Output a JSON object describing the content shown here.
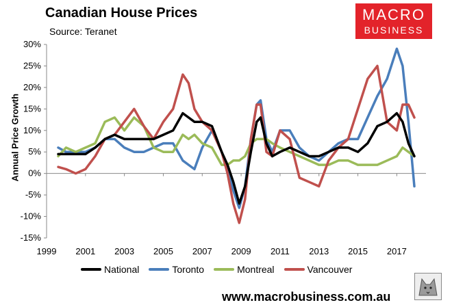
{
  "chart_data": {
    "type": "line",
    "title": "Canadian House Prices",
    "subtitle": "Source: Teranet",
    "xlabel": "",
    "ylabel": "Annual Price Growth",
    "ylim": [
      -15,
      30
    ],
    "xlim": [
      1999,
      2018.5
    ],
    "grid": false,
    "legend_position": "bottom",
    "y_ticks": [
      "-15%",
      "-10%",
      "-5%",
      "0%",
      "5%",
      "10%",
      "15%",
      "20%",
      "25%",
      "30%"
    ],
    "x_ticks": [
      "1999",
      "2001",
      "2003",
      "2005",
      "2007",
      "2009",
      "2011",
      "2013",
      "2015",
      "2017"
    ],
    "series": [
      {
        "name": "National",
        "color": "#000000",
        "x": [
          1999.6,
          2000.0,
          2000.5,
          2001.0,
          2001.5,
          2002.0,
          2002.5,
          2003.0,
          2003.5,
          2004.0,
          2004.5,
          2005.0,
          2005.5,
          2006.0,
          2006.3,
          2006.6,
          2007.0,
          2007.5,
          2008.0,
          2008.3,
          2008.6,
          2008.9,
          2009.2,
          2009.5,
          2009.8,
          2010.0,
          2010.3,
          2010.6,
          2011.0,
          2011.5,
          2012.0,
          2012.5,
          2013.0,
          2013.5,
          2014.0,
          2014.5,
          2015.0,
          2015.5,
          2016.0,
          2016.5,
          2017.0,
          2017.3,
          2017.6,
          2017.9
        ],
        "values": [
          4.5,
          4.5,
          4.5,
          4.5,
          6,
          8,
          9,
          8,
          8,
          8,
          8,
          9,
          10,
          14,
          13,
          12,
          12,
          11,
          5,
          2,
          -2,
          -7,
          -3,
          5,
          12,
          13,
          7,
          4,
          5,
          6,
          5,
          4,
          4,
          5,
          6,
          6,
          5,
          7,
          11,
          12,
          14,
          12,
          7,
          4
        ]
      },
      {
        "name": "Toronto",
        "color": "#4a7ebb",
        "x": [
          1999.6,
          2000.0,
          2000.5,
          2001.0,
          2001.5,
          2002.0,
          2002.5,
          2003.0,
          2003.5,
          2004.0,
          2004.5,
          2005.0,
          2005.5,
          2006.0,
          2006.3,
          2006.6,
          2007.0,
          2007.5,
          2008.0,
          2008.3,
          2008.6,
          2008.9,
          2009.2,
          2009.5,
          2009.8,
          2010.0,
          2010.3,
          2010.6,
          2011.0,
          2011.5,
          2012.0,
          2012.5,
          2013.0,
          2013.5,
          2014.0,
          2014.5,
          2015.0,
          2015.5,
          2016.0,
          2016.5,
          2017.0,
          2017.3,
          2017.6,
          2017.9
        ],
        "values": [
          6,
          5,
          5,
          5,
          6,
          8,
          8,
          6,
          5,
          5,
          6,
          7,
          7,
          3,
          2,
          1,
          6,
          10,
          5,
          1,
          -4,
          -8,
          -3,
          8,
          16,
          17,
          8,
          5,
          10,
          10,
          6,
          4,
          3,
          5,
          7,
          8,
          8,
          13,
          18,
          22,
          29,
          25,
          12,
          -3
        ]
      },
      {
        "name": "Montreal",
        "color": "#9bbb59",
        "x": [
          1999.6,
          2000.0,
          2000.5,
          2001.0,
          2001.5,
          2002.0,
          2002.5,
          2003.0,
          2003.5,
          2004.0,
          2004.5,
          2005.0,
          2005.5,
          2006.0,
          2006.3,
          2006.6,
          2007.0,
          2007.5,
          2008.0,
          2008.3,
          2008.6,
          2008.9,
          2009.2,
          2009.5,
          2009.8,
          2010.0,
          2010.3,
          2010.6,
          2011.0,
          2011.5,
          2012.0,
          2012.5,
          2013.0,
          2013.5,
          2014.0,
          2014.5,
          2015.0,
          2015.5,
          2016.0,
          2016.5,
          2017.0,
          2017.3,
          2017.6,
          2017.9
        ],
        "values": [
          4,
          6,
          5,
          6,
          7,
          12,
          13,
          10,
          13,
          11,
          6,
          5,
          5,
          9,
          8,
          9,
          7,
          6,
          2,
          2,
          3,
          3,
          4,
          7,
          8,
          8,
          8,
          7,
          6,
          5,
          4,
          3,
          2,
          2,
          3,
          3,
          2,
          2,
          2,
          3,
          4,
          6,
          5,
          4
        ]
      },
      {
        "name": "Vancouver",
        "color": "#c0504d",
        "x": [
          1999.6,
          2000.0,
          2000.5,
          2001.0,
          2001.5,
          2002.0,
          2002.5,
          2003.0,
          2003.5,
          2004.0,
          2004.5,
          2005.0,
          2005.5,
          2006.0,
          2006.3,
          2006.6,
          2007.0,
          2007.5,
          2008.0,
          2008.3,
          2008.6,
          2008.9,
          2009.2,
          2009.5,
          2009.8,
          2010.0,
          2010.3,
          2010.6,
          2011.0,
          2011.5,
          2012.0,
          2012.5,
          2013.0,
          2013.5,
          2014.0,
          2014.5,
          2015.0,
          2015.5,
          2016.0,
          2016.5,
          2017.0,
          2017.3,
          2017.6,
          2017.9
        ],
        "values": [
          1.5,
          1,
          0,
          1,
          4,
          8,
          9,
          12,
          15,
          11,
          8,
          12,
          15,
          23,
          21,
          15,
          12,
          10,
          5,
          0,
          -7,
          -11.5,
          -6,
          8,
          16,
          16,
          5,
          4,
          10,
          8,
          -1,
          -2,
          -3,
          3,
          6,
          8,
          15,
          22,
          25,
          12,
          10,
          16,
          16,
          13
        ]
      }
    ]
  },
  "footer": {
    "website": "www.macrobusiness.com.au"
  },
  "logo": {
    "line1": "MACRO",
    "line2": "BUSINESS"
  }
}
